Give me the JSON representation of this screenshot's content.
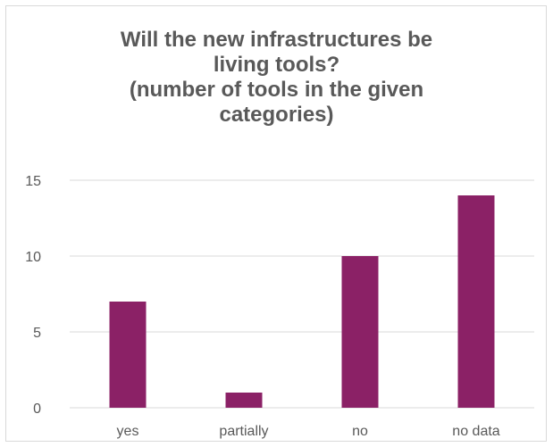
{
  "chart_data": {
    "type": "bar",
    "title_lines": [
      "Will the new infrastructures be",
      "living tools?",
      "(number of tools in the given",
      "categories)"
    ],
    "categories": [
      "yes",
      "partially",
      "no",
      "no data"
    ],
    "values": [
      7,
      1,
      10,
      14
    ],
    "ylim": [
      0,
      15
    ],
    "yticks": [
      "0",
      "5",
      "10",
      "15"
    ],
    "grid": true,
    "legend": "none",
    "bar_color": "#8b2166",
    "grid_color": "#d9d9d9",
    "text_color": "#595959"
  }
}
